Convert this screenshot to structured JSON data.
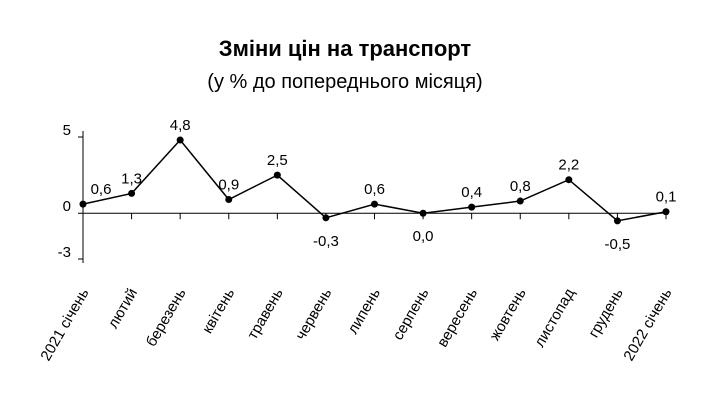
{
  "chart_data": {
    "type": "line",
    "title": "Зміни цін на транспорт",
    "subtitle": "(у % до попереднього місяця)",
    "categories": [
      "2021 січень",
      "лютий",
      "березень",
      "квітень",
      "травень",
      "червень",
      "липень",
      "серпень",
      "вересень",
      "жовтень",
      "листопад",
      "грудень",
      "2022 січень"
    ],
    "values": [
      0.6,
      1.3,
      4.8,
      0.9,
      2.5,
      -0.3,
      0.6,
      0.0,
      0.4,
      0.8,
      2.2,
      -0.5,
      0.1
    ],
    "value_labels": [
      "0,6",
      "1,3",
      "4,8",
      "0,9",
      "2,5",
      "-0,3",
      "0,6",
      "0,0",
      "0,4",
      "0,8",
      "2,2",
      "-0,5",
      "0,1"
    ],
    "color": "#000000",
    "ylim": [
      -3,
      5
    ],
    "yticks": [
      -3,
      0,
      5
    ],
    "grid": false
  }
}
